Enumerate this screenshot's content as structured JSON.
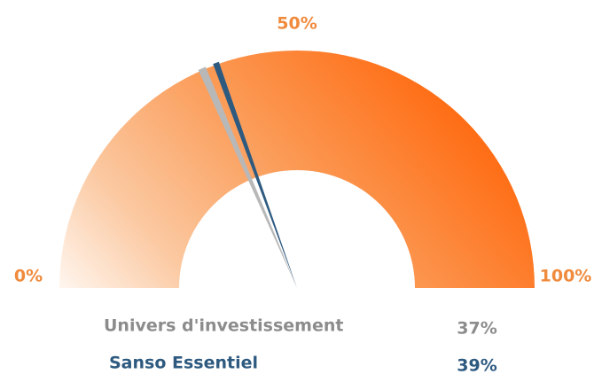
{
  "chart_data": {
    "type": "gauge",
    "xlim": [
      0,
      100
    ],
    "xticks": [
      {
        "value": 0,
        "label": "0%"
      },
      {
        "value": 50,
        "label": "50%"
      },
      {
        "value": 100,
        "label": "100%"
      }
    ],
    "series": [
      {
        "name": "Univers d'investissement",
        "color": "#b8b8b8",
        "values": [
          37
        ],
        "value_labels": [
          "37%"
        ]
      },
      {
        "name": "Sanso Essentiel",
        "color": "#2e5a80",
        "values": [
          39
        ],
        "value_labels": [
          "39%"
        ]
      }
    ]
  }
}
